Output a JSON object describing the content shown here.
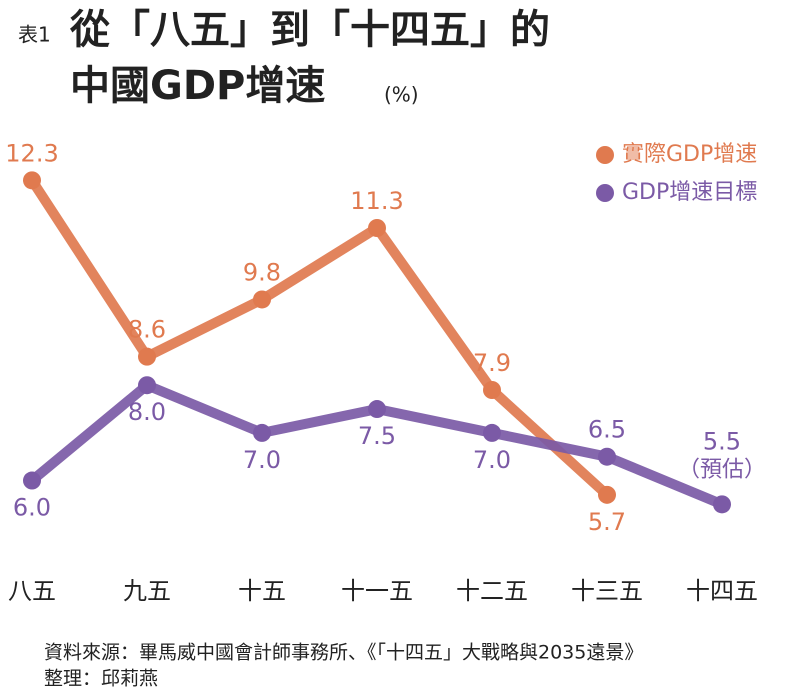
{
  "chart_data": {
    "type": "line",
    "label": "表1",
    "title": [
      "從「八五」到「十四五」的",
      "中國GDP增速"
    ],
    "unit": "(%)",
    "categories": [
      "八五",
      "九五",
      "十五",
      "十一五",
      "十二五",
      "十三五",
      "十四五"
    ],
    "series": [
      {
        "name": "實際GDP增速",
        "color": "#e07a4f",
        "values": [
          12.3,
          8.6,
          9.8,
          11.3,
          7.9,
          5.7,
          null
        ],
        "value_labels": [
          "12.3",
          "8.6",
          "9.8",
          "11.3",
          "7.9",
          "5.7",
          null
        ]
      },
      {
        "name": "GDP增速目標",
        "color": "#7b5aa6",
        "values": [
          6,
          8,
          7,
          7.5,
          7,
          6.5,
          5.5
        ],
        "value_labels": [
          "6.0",
          "8.0",
          "7.0",
          "7.5",
          "7.0",
          "6.5",
          "5.5"
        ]
      }
    ],
    "annotations": [
      {
        "text": "（預估）",
        "category": 6
      }
    ],
    "ylim": [
      4.5,
      13
    ],
    "legend": "upper right",
    "source": "資料來源：畢馬威中國會計師事務所、《「十四五」大戰略與2035遠景》",
    "credit": "整理：邱莉燕"
  }
}
